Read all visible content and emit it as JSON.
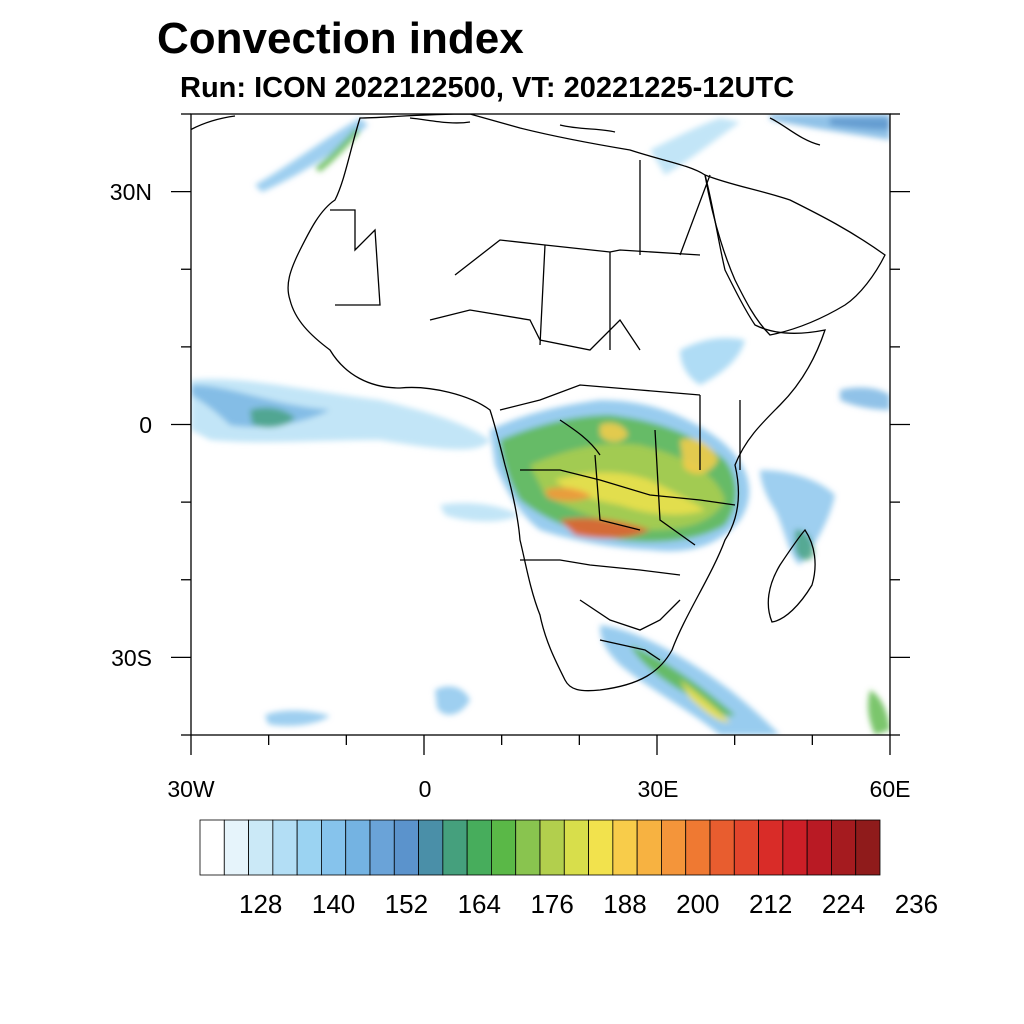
{
  "title": "Convection index",
  "subtitle": "Run: ICON 2022122500,  VT: 20221225-12UTC",
  "map": {
    "lon_range": [
      -30,
      60
    ],
    "lat_range": [
      -40,
      40
    ],
    "y_ticks": [
      {
        "label": "30N",
        "lat": 30
      },
      {
        "label": "0",
        "lat": 0
      },
      {
        "label": "30S",
        "lat": -30
      }
    ],
    "x_ticks": [
      {
        "label": "30W",
        "lon": -30
      },
      {
        "label": "0",
        "lon": 0
      },
      {
        "label": "30E",
        "lon": 30
      },
      {
        "label": "60E",
        "lon": 60
      }
    ],
    "colors": {
      "border": "#000000",
      "background": "#ffffff"
    }
  },
  "colorbar": {
    "colors": [
      "#ffffff",
      "#e6f4fb",
      "#cbe9f7",
      "#b3def5",
      "#9bd3f2",
      "#86c3ec",
      "#74b3e2",
      "#6aa3d8",
      "#5b93cc",
      "#4a8fa8",
      "#45a07d",
      "#47ad5c",
      "#5ab847",
      "#89c44f",
      "#b2cf4d",
      "#d8de4b",
      "#f2e24d",
      "#f8cc4a",
      "#f7b241",
      "#f4953a",
      "#ef7932",
      "#e85d2f",
      "#e2452c",
      "#d92c28",
      "#cc1f27",
      "#b91a24",
      "#a51b1f",
      "#8f1b1b"
    ],
    "labels": [
      "128",
      "140",
      "152",
      "164",
      "176",
      "188",
      "200",
      "212",
      "224",
      "236"
    ]
  }
}
